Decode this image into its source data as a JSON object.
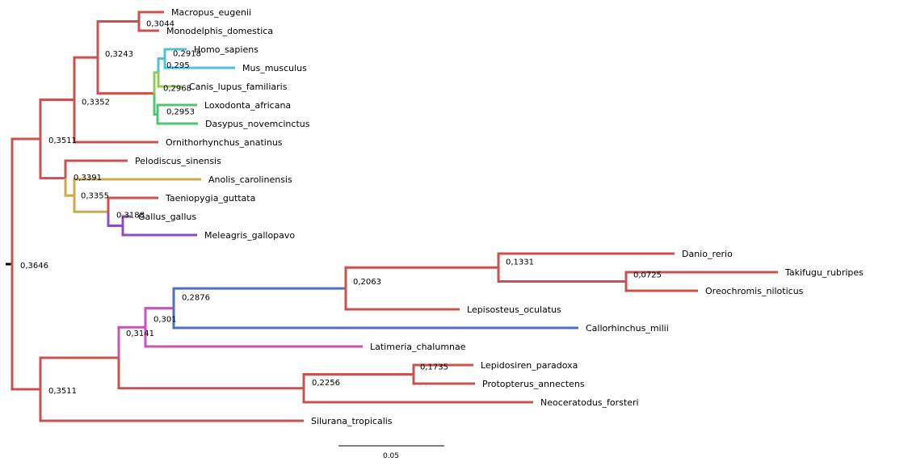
{
  "colors": {
    "default": "#c9514f",
    "mammal_blue": "#4fc3d5",
    "mammal_lightgreen": "#96c85a",
    "mammal_green": "#50c473",
    "reptile_gold": "#ccaa4a",
    "bird_purple": "#8e4cc3",
    "fish_blue": "#4f6fbf",
    "fish_magenta": "#c554b4",
    "root_marker": "#000000"
  },
  "scale_bar": {
    "label": "0.05"
  },
  "tree": {
    "support": "0,3646",
    "children": [
      {
        "support": "0,3511",
        "children": [
          {
            "support": "0,3352",
            "children": [
              {
                "support": "0,3243",
                "children": [
                  {
                    "support": "0,3044",
                    "children": [
                      {
                        "name": "Macropus_eugenii"
                      },
                      {
                        "name": "Monodelphis_domestica"
                      }
                    ]
                  },
                  {
                    "support": "0,2968",
                    "children": [
                      {
                        "support": "0,295",
                        "children": [
                          {
                            "support": "0,2918",
                            "children": [
                              {
                                "name": "Homo_sapiens"
                              },
                              {
                                "name": "Mus_musculus"
                              }
                            ]
                          },
                          {
                            "name": "Canis_lupus_familiaris"
                          }
                        ]
                      },
                      {
                        "support": "0,2953",
                        "children": [
                          {
                            "name": "Loxodonta_africana"
                          },
                          {
                            "name": "Dasypus_novemcinctus"
                          }
                        ]
                      }
                    ]
                  }
                ]
              },
              {
                "name": "Ornithorhynchus_anatinus"
              }
            ]
          },
          {
            "support": "",
            "children": [
              {
                "name": "Pelodiscus_sinensis"
              },
              {
                "support": "0,3391",
                "children": [
                  {
                    "name": "Anolis_carolinensis"
                  },
                  {
                    "support": "0,3355",
                    "children": [
                      {
                        "name": "Taeniopygia_guttata"
                      },
                      {
                        "support": "0,3188",
                        "children": [
                          {
                            "name": "Gallus_gallus"
                          },
                          {
                            "name": "Meleagris_gallopavo"
                          }
                        ]
                      }
                    ]
                  }
                ]
              }
            ]
          }
        ]
      },
      {
        "support": "0,3511",
        "children": [
          {
            "support": "0,3141",
            "children": [
              {
                "support": "0,301",
                "children": [
                  {
                    "support": "0,2876",
                    "children": [
                      {
                        "support": "0,2063",
                        "children": [
                          {
                            "support": "0,1331",
                            "children": [
                              {
                                "name": "Danio_rerio"
                              },
                              {
                                "support": "0,0725",
                                "children": [
                                  {
                                    "name": "Takifugu_rubripes"
                                  },
                                  {
                                    "name": "Oreochromis_niloticus"
                                  }
                                ]
                              }
                            ]
                          },
                          {
                            "name": "Lepisosteus_oculatus"
                          }
                        ]
                      },
                      {
                        "name": "Callorhinchus_milii"
                      }
                    ]
                  },
                  {
                    "name": "Latimeria_chalumnae"
                  }
                ]
              },
              {
                "support": "0,2256",
                "children": [
                  {
                    "support": "0,1735",
                    "children": [
                      {
                        "name": "Lepidosiren_paradoxa"
                      },
                      {
                        "name": "Protopterus_annectens"
                      }
                    ]
                  },
                  {
                    "name": "Neoceratodus_forsteri"
                  }
                ]
              }
            ]
          },
          {
            "name": "Silurana_tropicalis"
          }
        ]
      }
    ]
  }
}
